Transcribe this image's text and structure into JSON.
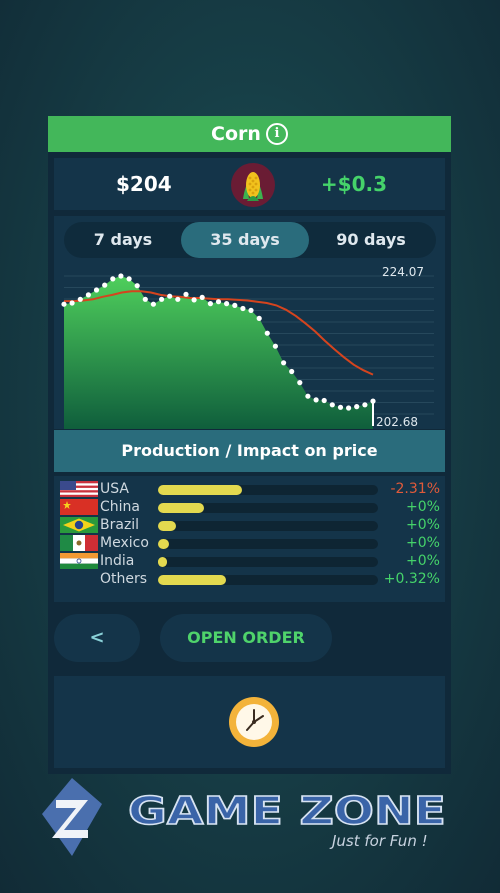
{
  "commodity": {
    "title": "Corn",
    "price": "$204",
    "change": "+$0.3"
  },
  "colors": {
    "green": "#43b75a",
    "up": "#45d36a",
    "down": "#e05a3a",
    "bar": "#e3d94f",
    "accent": "#2a6c7c"
  },
  "tabs": [
    {
      "label": "7 days",
      "active": false
    },
    {
      "label": "35 days",
      "active": true
    },
    {
      "label": "90 days",
      "active": false
    }
  ],
  "chart_data": {
    "type": "line",
    "high_label": "224.07",
    "low_label": "202.68",
    "series": [
      {
        "values": [
          219.5,
          219.7,
          220.3,
          221.0,
          221.8,
          222.6,
          223.6,
          224.07,
          223.6,
          222.5,
          220.3,
          219.5,
          220.3,
          220.8,
          220.3,
          221.1,
          220.2,
          220.6,
          219.6,
          219.9,
          219.6,
          219.3,
          218.8,
          218.5,
          217.2,
          214.8,
          212.7,
          210.0,
          208.6,
          206.8,
          204.6,
          204.0,
          203.9,
          203.2,
          202.8,
          202.68,
          202.9,
          203.2,
          203.8
        ]
      },
      {
        "values": [
          220.0,
          220.0,
          220.1,
          220.3,
          220.7,
          221.0,
          221.4,
          221.6,
          221.6,
          221.4,
          221.0,
          220.8,
          220.7,
          220.5,
          220.5,
          220.4,
          220.3,
          220.3,
          220.2,
          220.1,
          219.9,
          219.7,
          219.3,
          218.6,
          217.6,
          216.4,
          215.1,
          213.6,
          212.2,
          210.9,
          209.7,
          208.8,
          208.1
        ]
      }
    ]
  },
  "production": {
    "title": "Production / Impact on price",
    "rows": [
      {
        "country": "USA",
        "flag": "usa-flag-icon",
        "level": 0.38,
        "impact": "-2.31%",
        "impact_color": "#e05a3a"
      },
      {
        "country": "China",
        "flag": "china-flag-icon",
        "level": 0.21,
        "impact": "+0%",
        "impact_color": "#45d36a"
      },
      {
        "country": "Brazil",
        "flag": "brazil-flag-icon",
        "level": 0.08,
        "impact": "+0%",
        "impact_color": "#45d36a"
      },
      {
        "country": "Mexico",
        "flag": "mexico-flag-icon",
        "level": 0.05,
        "impact": "+0%",
        "impact_color": "#45d36a"
      },
      {
        "country": "India",
        "flag": "india-flag-icon",
        "level": 0.04,
        "impact": "+0%",
        "impact_color": "#45d36a"
      },
      {
        "country": "Others",
        "flag": "",
        "level": 0.31,
        "impact": "+0.32%",
        "impact_color": "#45d36a"
      }
    ]
  },
  "buttons": {
    "back": "<",
    "open_order": "OPEN ORDER"
  },
  "watermark": {
    "brand": "GAME ZONE",
    "tagline": "Just for Fun !"
  }
}
